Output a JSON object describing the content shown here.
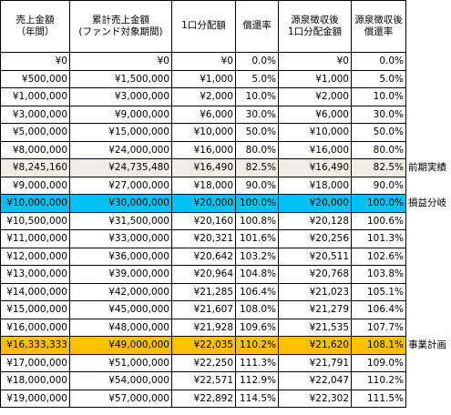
{
  "headers": [
    "売上金額\n（年間）",
    "累計売上金額\n(ファンド対象期間)",
    "1口分配額",
    "償還率",
    "源泉徴収後\n1口分配金額",
    "源泉徴収後\n償還率"
  ],
  "rows": [
    {
      "cells": [
        "¥0",
        "¥0",
        "¥0",
        "0.0%",
        "¥0",
        "0.0%"
      ],
      "style": "",
      "label": ""
    },
    {
      "cells": [
        "¥500,000",
        "¥1,500,000",
        "¥1,000",
        "5.0%",
        "¥1,000",
        "5.0%"
      ],
      "style": "",
      "label": ""
    },
    {
      "cells": [
        "¥1,000,000",
        "¥3,000,000",
        "¥2,000",
        "10.0%",
        "¥2,000",
        "10.0%"
      ],
      "style": "",
      "label": ""
    },
    {
      "cells": [
        "¥3,000,000",
        "¥9,000,000",
        "¥6,000",
        "30.0%",
        "¥6,000",
        "30.0%"
      ],
      "style": "",
      "label": ""
    },
    {
      "cells": [
        "¥5,000,000",
        "¥15,000,000",
        "¥10,000",
        "50.0%",
        "¥10,000",
        "50.0%"
      ],
      "style": "",
      "label": ""
    },
    {
      "cells": [
        "¥8,000,000",
        "¥24,000,000",
        "¥16,000",
        "80.0%",
        "¥16,000",
        "80.0%"
      ],
      "style": "",
      "label": ""
    },
    {
      "cells": [
        "¥8,245,160",
        "¥24,735,480",
        "¥16,490",
        "82.5%",
        "¥16,490",
        "82.5%"
      ],
      "style": "gray",
      "label": "前期実績"
    },
    {
      "cells": [
        "¥9,000,000",
        "¥27,000,000",
        "¥18,000",
        "90.0%",
        "¥18,000",
        "90.0%"
      ],
      "style": "",
      "label": ""
    },
    {
      "cells": [
        "¥10,000,000",
        "¥30,000,000",
        "¥20,000",
        "100.0%",
        "¥20,000",
        "100.0%"
      ],
      "style": "cyan",
      "label": "損益分岐"
    },
    {
      "cells": [
        "¥10,500,000",
        "¥31,500,000",
        "¥20,160",
        "100.8%",
        "¥20,128",
        "100.6%"
      ],
      "style": "",
      "label": ""
    },
    {
      "cells": [
        "¥11,000,000",
        "¥33,000,000",
        "¥20,321",
        "101.6%",
        "¥20,256",
        "101.3%"
      ],
      "style": "",
      "label": ""
    },
    {
      "cells": [
        "¥12,000,000",
        "¥36,000,000",
        "¥20,642",
        "103.2%",
        "¥20,511",
        "102.6%"
      ],
      "style": "",
      "label": ""
    },
    {
      "cells": [
        "¥13,000,000",
        "¥39,000,000",
        "¥20,964",
        "104.8%",
        "¥20,768",
        "103.8%"
      ],
      "style": "",
      "label": ""
    },
    {
      "cells": [
        "¥14,000,000",
        "¥42,000,000",
        "¥21,285",
        "106.4%",
        "¥21,023",
        "105.1%"
      ],
      "style": "",
      "label": ""
    },
    {
      "cells": [
        "¥15,000,000",
        "¥45,000,000",
        "¥21,607",
        "108.0%",
        "¥21,279",
        "106.4%"
      ],
      "style": "",
      "label": ""
    },
    {
      "cells": [
        "¥16,000,000",
        "¥48,000,000",
        "¥21,928",
        "109.6%",
        "¥21,535",
        "107.7%"
      ],
      "style": "",
      "label": ""
    },
    {
      "cells": [
        "¥16,333,333",
        "¥49,000,000",
        "¥22,035",
        "110.2%",
        "¥21,620",
        "108.1%"
      ],
      "style": "orange",
      "label": "事業計画"
    },
    {
      "cells": [
        "¥17,000,000",
        "¥51,000,000",
        "¥22,250",
        "111.3%",
        "¥21,791",
        "109.0%"
      ],
      "style": "",
      "label": ""
    },
    {
      "cells": [
        "¥18,000,000",
        "¥54,000,000",
        "¥22,571",
        "112.9%",
        "¥22,047",
        "110.2%"
      ],
      "style": "",
      "label": ""
    },
    {
      "cells": [
        "¥19,000,000",
        "¥57,000,000",
        "¥22,892",
        "114.5%",
        "¥22,302",
        "111.5%"
      ],
      "style": "",
      "label": ""
    }
  ],
  "colors": {
    "gray_row": "#f0eee4",
    "cyan_row": "#00c2f2",
    "orange_row": "#ffc000",
    "border": "#000000"
  }
}
